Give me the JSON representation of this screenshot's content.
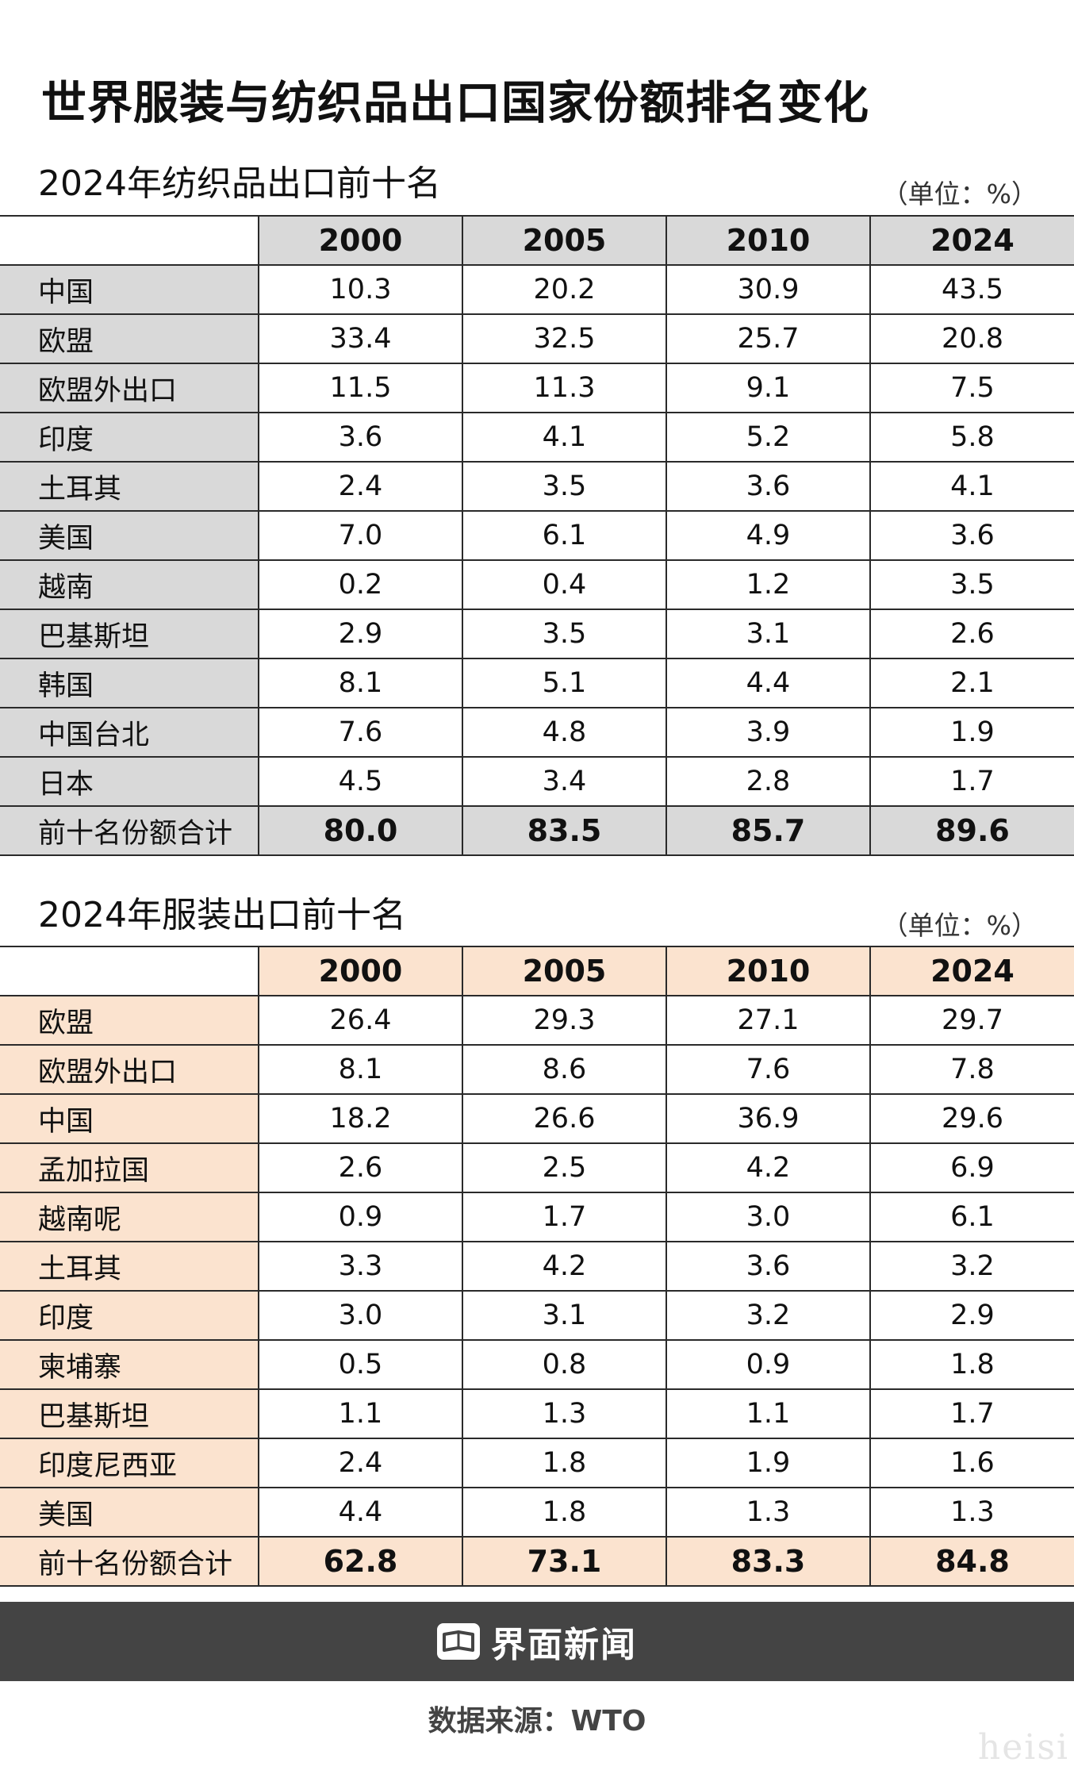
{
  "title": "世界服装与纺织品出口国家份额排名变化",
  "textile": {
    "title": "2024年纺织品出口前十名",
    "unit": "（单位：%）",
    "years": [
      "2000",
      "2005",
      "2010",
      "2024"
    ],
    "rows": [
      {
        "name": "中国",
        "values": [
          "10.3",
          "20.2",
          "30.9",
          "43.5"
        ]
      },
      {
        "name": "欧盟",
        "values": [
          "33.4",
          "32.5",
          "25.7",
          "20.8"
        ]
      },
      {
        "name": "欧盟外出口",
        "values": [
          "11.5",
          "11.3",
          "9.1",
          "7.5"
        ]
      },
      {
        "name": "印度",
        "values": [
          "3.6",
          "4.1",
          "5.2",
          "5.8"
        ]
      },
      {
        "name": "土耳其",
        "values": [
          "2.4",
          "3.5",
          "3.6",
          "4.1"
        ]
      },
      {
        "name": "美国",
        "values": [
          "7.0",
          "6.1",
          "4.9",
          "3.6"
        ]
      },
      {
        "name": "越南",
        "values": [
          "0.2",
          "0.4",
          "1.2",
          "3.5"
        ]
      },
      {
        "name": "巴基斯坦",
        "values": [
          "2.9",
          "3.5",
          "3.1",
          "2.6"
        ]
      },
      {
        "name": "韩国",
        "values": [
          "8.1",
          "5.1",
          "4.4",
          "2.1"
        ]
      },
      {
        "name": "中国台北",
        "values": [
          "7.6",
          "4.8",
          "3.9",
          "1.9"
        ]
      },
      {
        "name": "日本",
        "values": [
          "4.5",
          "3.4",
          "2.8",
          "1.7"
        ]
      }
    ],
    "total": {
      "name": "前十名份额合计",
      "values": [
        "80.0",
        "83.5",
        "85.7",
        "89.6"
      ]
    }
  },
  "apparel": {
    "title": "2024年服装出口前十名",
    "unit": "（单位：%）",
    "years": [
      "2000",
      "2005",
      "2010",
      "2024"
    ],
    "rows": [
      {
        "name": "欧盟",
        "values": [
          "26.4",
          "29.3",
          "27.1",
          "29.7"
        ]
      },
      {
        "name": "欧盟外出口",
        "values": [
          "8.1",
          "8.6",
          "7.6",
          "7.8"
        ]
      },
      {
        "name": "中国",
        "values": [
          "18.2",
          "26.6",
          "36.9",
          "29.6"
        ]
      },
      {
        "name": "孟加拉国",
        "values": [
          "2.6",
          "2.5",
          "4.2",
          "6.9"
        ]
      },
      {
        "name": "越南呢",
        "values": [
          "0.9",
          "1.7",
          "3.0",
          "6.1"
        ]
      },
      {
        "name": "土耳其",
        "values": [
          "3.3",
          "4.2",
          "3.6",
          "3.2"
        ]
      },
      {
        "name": "印度",
        "values": [
          "3.0",
          "3.1",
          "3.2",
          "2.9"
        ]
      },
      {
        "name": "柬埔寨",
        "values": [
          "0.5",
          "0.8",
          "0.9",
          "1.8"
        ]
      },
      {
        "name": "巴基斯坦",
        "values": [
          "1.1",
          "1.3",
          "1.1",
          "1.7"
        ]
      },
      {
        "name": "印度尼西亚",
        "values": [
          "2.4",
          "1.8",
          "1.9",
          "1.6"
        ]
      },
      {
        "name": "美国",
        "values": [
          "4.4",
          "1.8",
          "1.3",
          "1.3"
        ]
      }
    ],
    "total": {
      "name": "前十名份额合计",
      "values": [
        "62.8",
        "73.1",
        "83.3",
        "84.8"
      ]
    }
  },
  "footer": {
    "brand": "界面新闻",
    "logo_icon": "jiemian-logo-icon",
    "source": "数据来源：WTO"
  },
  "watermark": "heisi",
  "colors": {
    "textile_header_bg": "#d9d9d9",
    "apparel_header_bg": "#fbe3cf",
    "footer_bg": "#444444"
  }
}
